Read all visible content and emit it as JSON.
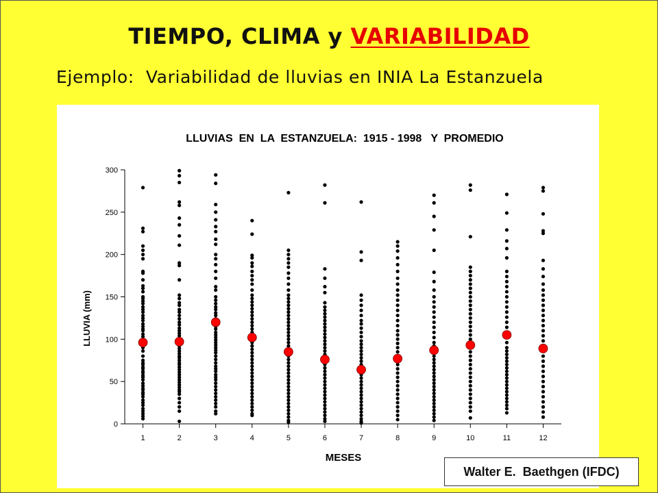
{
  "slide": {
    "title_prefix": "TIEMPO, CLIMA y ",
    "title_highlight": "VARIABILIDAD",
    "subtitle": "Ejemplo:  Variabilidad de lluvias en INIA La Estanzuela",
    "credit": "Walter E.  Baethgen (IFDC)",
    "colors": {
      "background": "#ffff33",
      "highlight": "#e60000",
      "panel": "#ffffff",
      "observation_dot": "#000000",
      "mean_marker": "#ff0000"
    }
  },
  "chart_data": {
    "type": "scatter",
    "title": "LLUVIAS  EN  LA  ESTANZUELA:  1915 - 1998   Y  PROMEDIO",
    "xlabel": "MESES",
    "ylabel": "LLUVIA (mm)",
    "ylim": [
      0,
      300
    ],
    "yticks": [
      0,
      50,
      100,
      150,
      200,
      250,
      300
    ],
    "categories": [
      "1",
      "2",
      "3",
      "4",
      "5",
      "6",
      "7",
      "8",
      "9",
      "10",
      "11",
      "12"
    ],
    "grid": false,
    "legend": "none",
    "series": [
      {
        "role": "observations",
        "values": [
          [
            279,
            231,
            227,
            210,
            205,
            200,
            195,
            180,
            178,
            170,
            163,
            160,
            156,
            150,
            148,
            145,
            142,
            138,
            135,
            132,
            128,
            125,
            122,
            118,
            115,
            112,
            110,
            106,
            103,
            100,
            97,
            93,
            90,
            86,
            80,
            75,
            72,
            70,
            67,
            65,
            62,
            60,
            57,
            55,
            52,
            48,
            45,
            42,
            40,
            37,
            35,
            32,
            28,
            25,
            22,
            18,
            15,
            12,
            9,
            6
          ],
          [
            299,
            293,
            285,
            262,
            258,
            243,
            235,
            222,
            211,
            190,
            187,
            170,
            152,
            148,
            143,
            140,
            135,
            132,
            128,
            124,
            120,
            117,
            113,
            110,
            107,
            104,
            100,
            98,
            95,
            92,
            89,
            86,
            83,
            80,
            78,
            75,
            72,
            70,
            67,
            64,
            61,
            58,
            55,
            52,
            49,
            46,
            43,
            40,
            38,
            35,
            30,
            25,
            20,
            15,
            3
          ],
          [
            294,
            284,
            259,
            250,
            241,
            233,
            227,
            218,
            212,
            200,
            195,
            188,
            180,
            172,
            162,
            158,
            150,
            146,
            142,
            138,
            135,
            131,
            128,
            124,
            118,
            115,
            112,
            108,
            105,
            102,
            99,
            96,
            93,
            90,
            87,
            84,
            80,
            76,
            72,
            68,
            65,
            62,
            58,
            55,
            52,
            48,
            44,
            40,
            36,
            32,
            28,
            24,
            20,
            15,
            12
          ],
          [
            240,
            224,
            199,
            196,
            190,
            186,
            180,
            175,
            170,
            165,
            158,
            152,
            148,
            144,
            140,
            136,
            132,
            128,
            124,
            120,
            116,
            112,
            108,
            104,
            100,
            96,
            92,
            88,
            84,
            80,
            76,
            72,
            68,
            64,
            60,
            56,
            52,
            48,
            44,
            40,
            36,
            32,
            28,
            24,
            20,
            16,
            12,
            10
          ],
          [
            273,
            205,
            200,
            195,
            190,
            185,
            178,
            172,
            165,
            158,
            152,
            148,
            144,
            140,
            136,
            132,
            128,
            124,
            120,
            116,
            112,
            108,
            104,
            100,
            96,
            92,
            88,
            84,
            80,
            76,
            72,
            68,
            64,
            60,
            56,
            52,
            48,
            44,
            40,
            36,
            32,
            28,
            24,
            20,
            16,
            12,
            8,
            4,
            2
          ],
          [
            282,
            261,
            183,
            172,
            162,
            155,
            143,
            138,
            134,
            130,
            126,
            122,
            118,
            114,
            110,
            106,
            102,
            98,
            94,
            90,
            86,
            82,
            78,
            74,
            70,
            66,
            62,
            58,
            54,
            50,
            46,
            42,
            38,
            34,
            30,
            26,
            22,
            18,
            14,
            10,
            6,
            3
          ],
          [
            262,
            203,
            193,
            152,
            146,
            140,
            134,
            128,
            122,
            118,
            113,
            108,
            103,
            98,
            94,
            90,
            86,
            82,
            78,
            74,
            70,
            66,
            62,
            58,
            54,
            50,
            46,
            42,
            38,
            34,
            30,
            26,
            22,
            18,
            14,
            10,
            6,
            3,
            1
          ],
          [
            215,
            210,
            204,
            196,
            188,
            180,
            172,
            165,
            158,
            152,
            146,
            140,
            134,
            128,
            122,
            116,
            110,
            105,
            100,
            95,
            90,
            85,
            80,
            75,
            70,
            65,
            60,
            55,
            50,
            45,
            40,
            35,
            30,
            25,
            20,
            15,
            10,
            5
          ],
          [
            270,
            261,
            245,
            229,
            205,
            179,
            168,
            158,
            150,
            144,
            138,
            132,
            126,
            120,
            114,
            108,
            102,
            96,
            92,
            88,
            84,
            80,
            76,
            72,
            68,
            64,
            60,
            56,
            52,
            48,
            44,
            40,
            36,
            32,
            28,
            24,
            20,
            16,
            12,
            8,
            4
          ],
          [
            282,
            276,
            221,
            185,
            180,
            175,
            170,
            165,
            160,
            155,
            150,
            145,
            140,
            135,
            130,
            125,
            120,
            115,
            110,
            105,
            100,
            95,
            90,
            85,
            80,
            75,
            70,
            65,
            60,
            55,
            50,
            45,
            40,
            35,
            30,
            25,
            20,
            15,
            7
          ],
          [
            271,
            249,
            229,
            216,
            207,
            196,
            180,
            174,
            168,
            162,
            156,
            150,
            144,
            138,
            132,
            126,
            120,
            114,
            108,
            102,
            96,
            90,
            86,
            82,
            78,
            74,
            70,
            66,
            62,
            58,
            54,
            50,
            46,
            42,
            38,
            34,
            30,
            26,
            22,
            18,
            13
          ],
          [
            279,
            275,
            248,
            228,
            225,
            193,
            183,
            174,
            165,
            158,
            152,
            146,
            140,
            134,
            128,
            122,
            116,
            110,
            104,
            98,
            92,
            86,
            80,
            74,
            68,
            62,
            56,
            50,
            44,
            38,
            32,
            26,
            20,
            14,
            8
          ]
        ]
      },
      {
        "role": "mean",
        "values": [
          96,
          97,
          120,
          102,
          85,
          76,
          64,
          77,
          87,
          93,
          105,
          89
        ]
      }
    ]
  }
}
